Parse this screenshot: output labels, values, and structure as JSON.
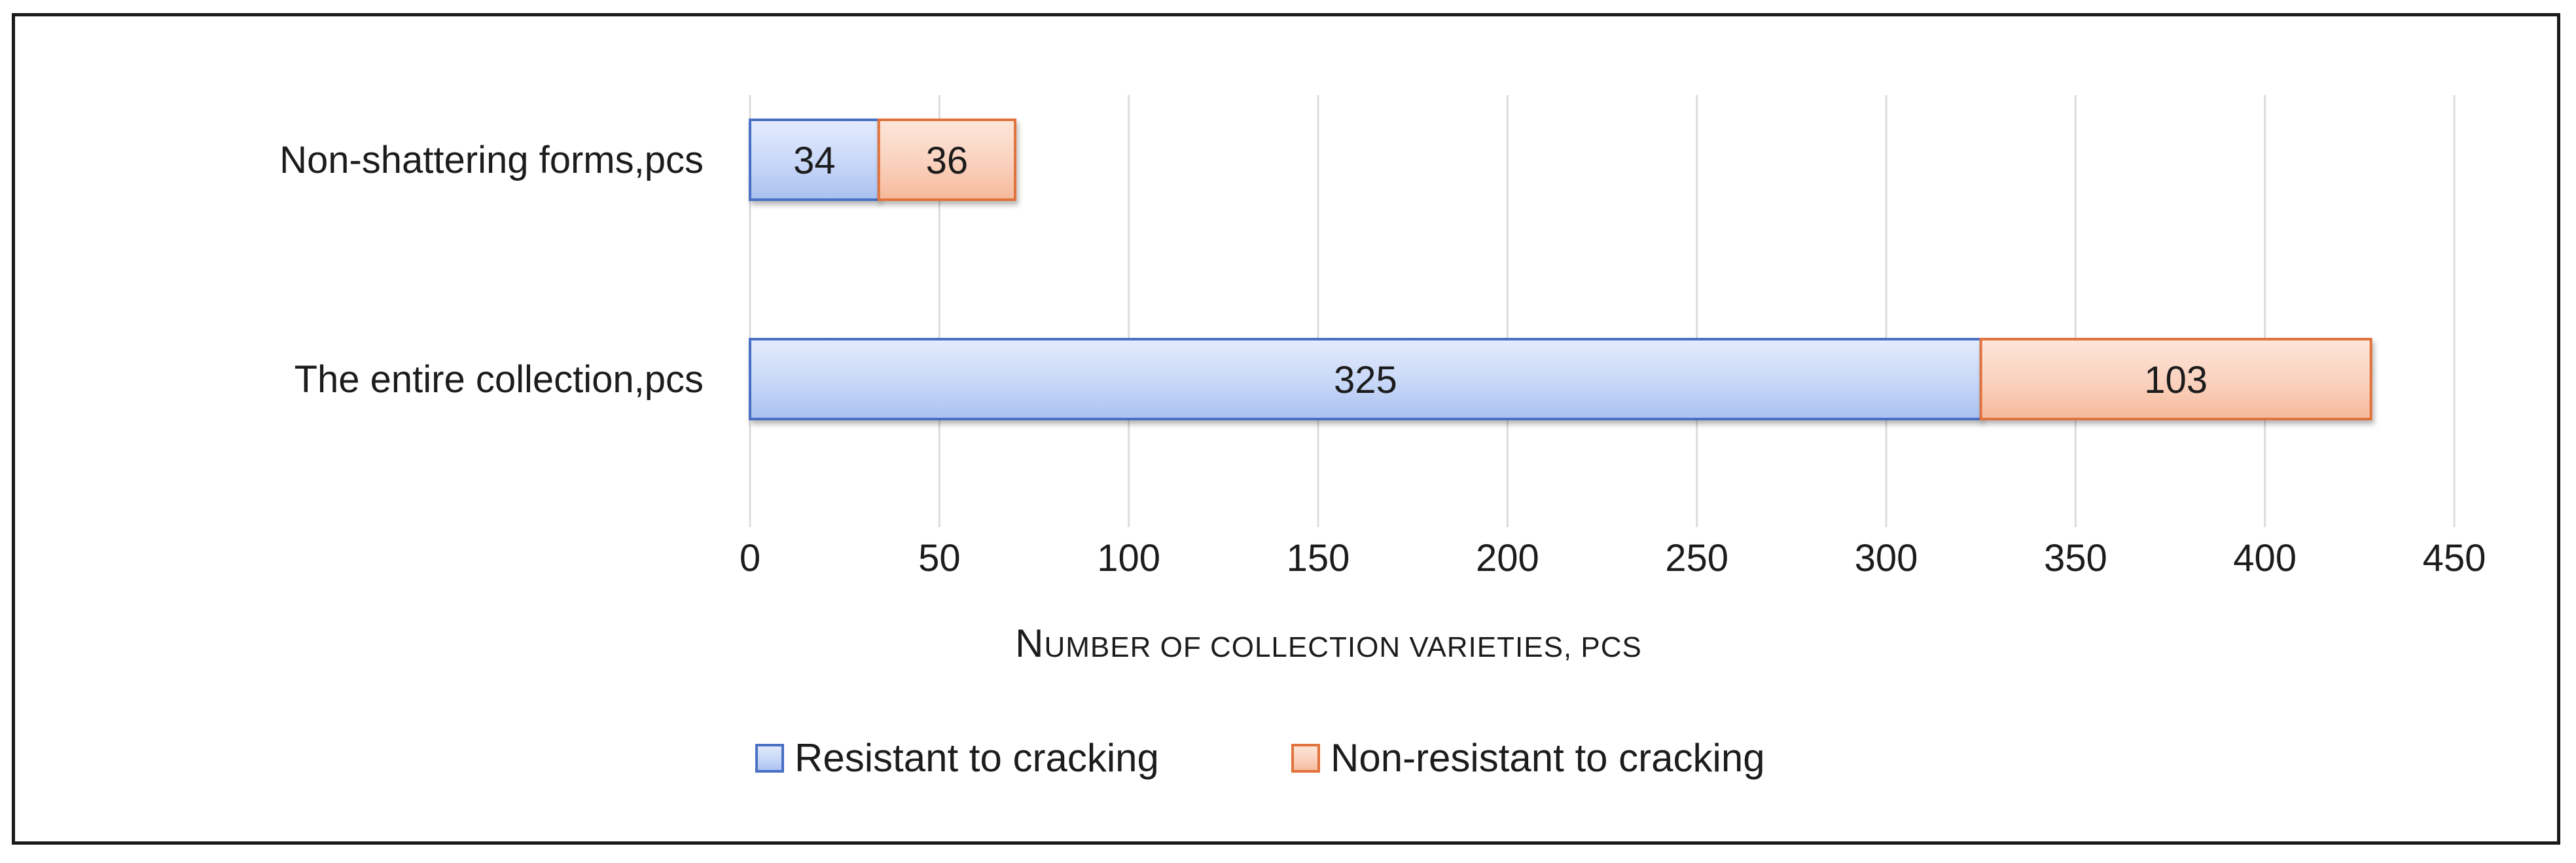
{
  "chart_data": {
    "type": "bar",
    "orientation": "horizontal",
    "stacked": true,
    "categories": [
      "Non-shattering forms,pcs",
      "The entire collection,pcs"
    ],
    "series": [
      {
        "name": "Resistant to cracking",
        "values": [
          34,
          325
        ],
        "color": "#c9d8f7",
        "stroke": "#4a70c4"
      },
      {
        "name": "Non-resistant to cracking",
        "values": [
          36,
          103
        ],
        "color": "#fbd7c4",
        "stroke": "#e0733d"
      }
    ],
    "xlim": [
      0,
      450
    ],
    "xticks": [
      0,
      50,
      100,
      150,
      200,
      250,
      300,
      350,
      400,
      450
    ],
    "xlabel": "Number of collection varieties, pcs",
    "ylabel": "",
    "title": "",
    "grid": "vertical",
    "legend_position": "bottom",
    "data_labels": true
  }
}
